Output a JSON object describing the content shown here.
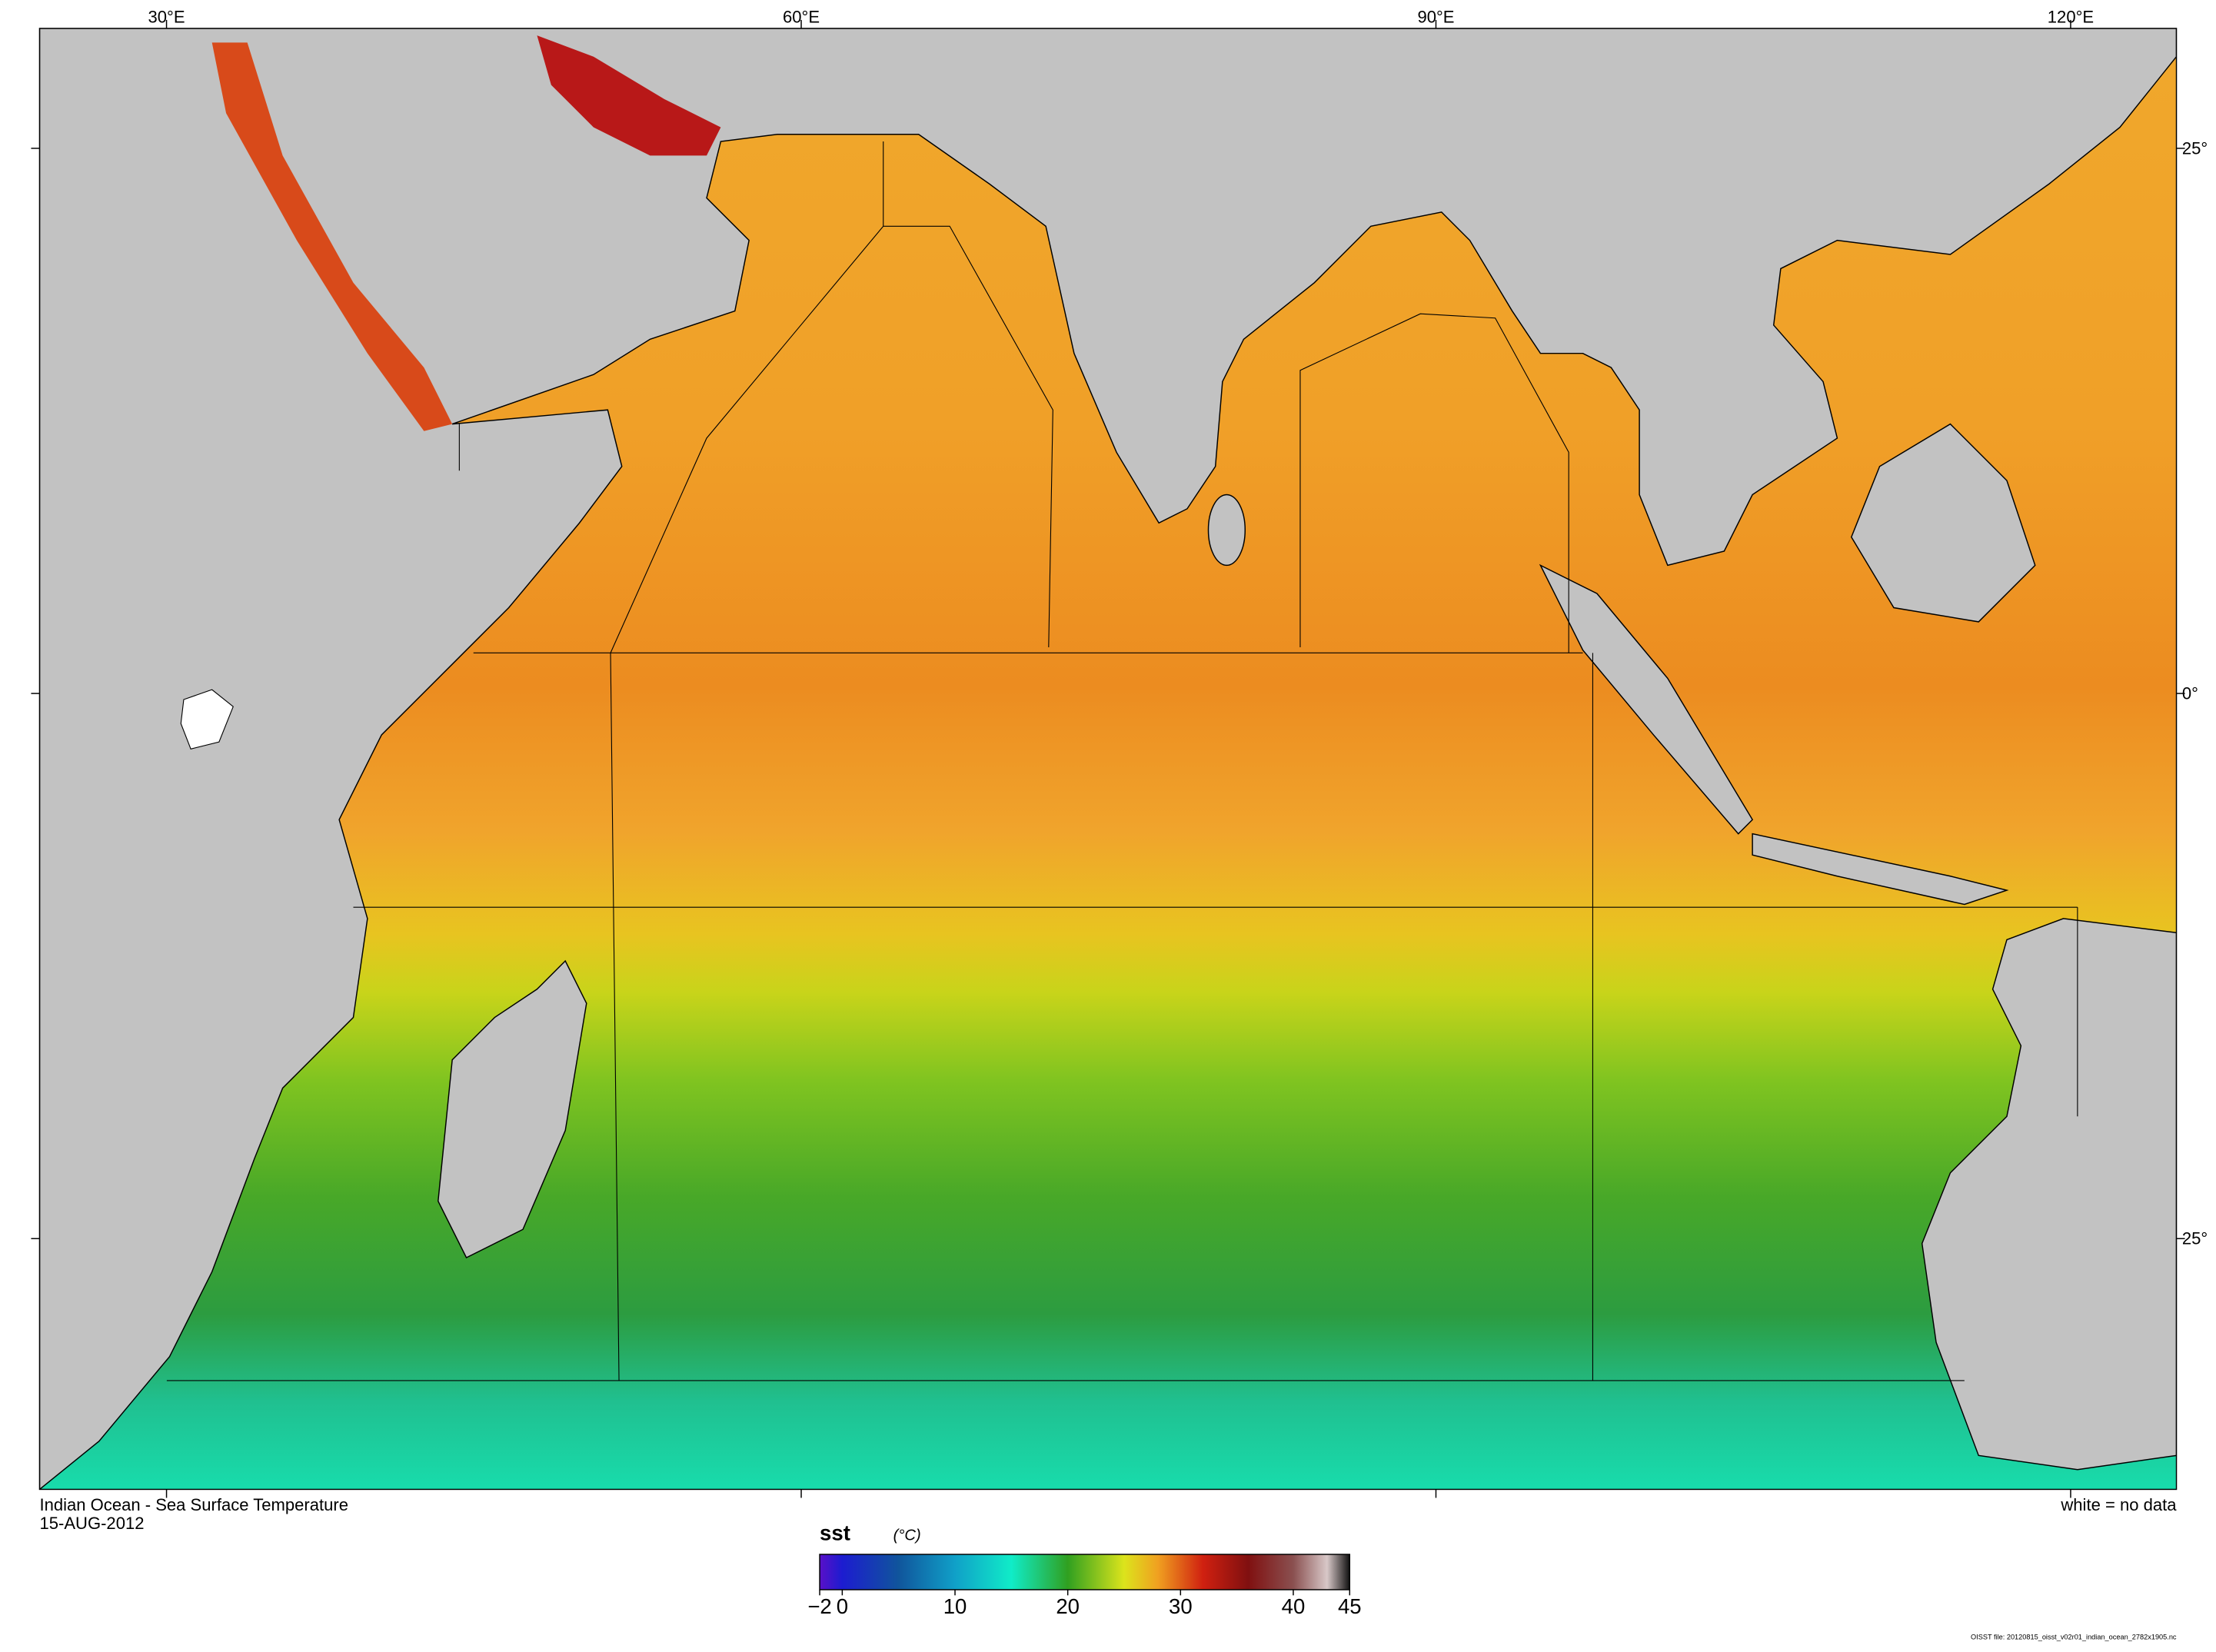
{
  "map": {
    "title": "Indian Ocean - Sea Surface Temperature",
    "date": "15-AUG-2012",
    "note": "white = no data",
    "file": "OISST file: 20120815_oisst_v02r01_indian_ocean_2782x1905.nc",
    "xlim": [
      24,
      125
    ],
    "ylim": [
      -36.5,
      30.5
    ],
    "xticks": [
      {
        "value": 30,
        "label": "30°E"
      },
      {
        "value": 60,
        "label": "60°E"
      },
      {
        "value": 90,
        "label": "90°E"
      },
      {
        "value": 120,
        "label": "120°E"
      }
    ],
    "yticks": [
      {
        "value": 25,
        "label": "25°"
      },
      {
        "value": 0,
        "label": "0°"
      },
      {
        "value": -25,
        "label": "25°"
      }
    ]
  },
  "colorbar": {
    "label": "sst",
    "units": "(°C)",
    "range": [
      -2,
      45
    ],
    "ticks": [
      {
        "value": -2,
        "label": "−2"
      },
      0,
      10,
      20,
      30,
      40,
      45
    ],
    "stops": [
      {
        "value": -2,
        "color": "#5a10c8"
      },
      {
        "value": 0,
        "color": "#1c1cd0"
      },
      {
        "value": 5,
        "color": "#10559c"
      },
      {
        "value": 10,
        "color": "#10a0c8"
      },
      {
        "value": 15,
        "color": "#10ecc8"
      },
      {
        "value": 20,
        "color": "#30a020"
      },
      {
        "value": 25,
        "color": "#dce41c"
      },
      {
        "value": 28,
        "color": "#f0a020"
      },
      {
        "value": 32,
        "color": "#d02010"
      },
      {
        "value": 36,
        "color": "#801010"
      },
      {
        "value": 40,
        "color": "#8a5050"
      },
      {
        "value": 43,
        "color": "#d8c8c8"
      },
      {
        "value": 45,
        "color": "#101010"
      }
    ]
  }
}
